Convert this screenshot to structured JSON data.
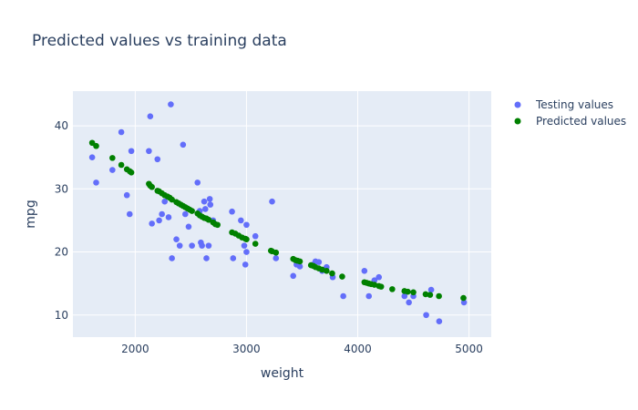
{
  "chart_data": {
    "type": "scatter",
    "title": "Predicted values vs training data",
    "xlabel": "weight",
    "ylabel": "mpg",
    "xlim": [
      1440,
      5200
    ],
    "ylim": [
      6.5,
      45.5
    ],
    "xticks": [
      2000,
      3000,
      4000,
      5000
    ],
    "yticks": [
      10,
      20,
      30,
      40
    ],
    "grid": true,
    "legend_position": "top-right",
    "colors": {
      "plot_bg": "#e5ecf6",
      "grid": "#ffffff",
      "text": "#2a3f5f"
    },
    "series": [
      {
        "name": "Testing values",
        "color": "#636efa",
        "points": [
          [
            1613,
            35
          ],
          [
            1649,
            31
          ],
          [
            1795,
            33
          ],
          [
            1875,
            39
          ],
          [
            1925,
            29
          ],
          [
            1950,
            26
          ],
          [
            1965,
            36
          ],
          [
            2123,
            36
          ],
          [
            2135,
            41.5
          ],
          [
            2150,
            24.5
          ],
          [
            2200,
            34.7
          ],
          [
            2215,
            25
          ],
          [
            2240,
            26
          ],
          [
            2265,
            28
          ],
          [
            2300,
            25.5
          ],
          [
            2320,
            43.4
          ],
          [
            2330,
            19
          ],
          [
            2370,
            22
          ],
          [
            2400,
            21
          ],
          [
            2430,
            37
          ],
          [
            2450,
            26
          ],
          [
            2480,
            24
          ],
          [
            2510,
            21
          ],
          [
            2560,
            31
          ],
          [
            2580,
            26.5
          ],
          [
            2590,
            21.5
          ],
          [
            2600,
            21
          ],
          [
            2620,
            28
          ],
          [
            2630,
            26.8
          ],
          [
            2640,
            19
          ],
          [
            2660,
            21
          ],
          [
            2670,
            28.4
          ],
          [
            2675,
            27.5
          ],
          [
            2700,
            25
          ],
          [
            2870,
            26.4
          ],
          [
            2880,
            19
          ],
          [
            2950,
            25
          ],
          [
            2980,
            21
          ],
          [
            2990,
            18
          ],
          [
            3000,
            20
          ],
          [
            3000,
            24.3
          ],
          [
            3080,
            22.5
          ],
          [
            3230,
            28
          ],
          [
            3265,
            19
          ],
          [
            3420,
            16.2
          ],
          [
            3450,
            18
          ],
          [
            3480,
            17.7
          ],
          [
            3600,
            18
          ],
          [
            3620,
            18.5
          ],
          [
            3650,
            18.4
          ],
          [
            3680,
            17
          ],
          [
            3720,
            17.6
          ],
          [
            3775,
            16
          ],
          [
            3870,
            13
          ],
          [
            4060,
            17
          ],
          [
            4100,
            13
          ],
          [
            4150,
            15.5
          ],
          [
            4190,
            16
          ],
          [
            4420,
            13
          ],
          [
            4460,
            12
          ],
          [
            4500,
            13
          ],
          [
            4615,
            10
          ],
          [
            4660,
            14
          ],
          [
            4732,
            9
          ],
          [
            4955,
            12
          ]
        ]
      },
      {
        "name": "Predicted values",
        "color": "#008000",
        "points": [
          [
            1613,
            37.3
          ],
          [
            1649,
            36.8
          ],
          [
            1795,
            34.9
          ],
          [
            1875,
            33.8
          ],
          [
            1925,
            33.1
          ],
          [
            1950,
            32.8
          ],
          [
            1965,
            32.6
          ],
          [
            2123,
            30.8
          ],
          [
            2135,
            30.5
          ],
          [
            2150,
            30.3
          ],
          [
            2200,
            29.7
          ],
          [
            2215,
            29.6
          ],
          [
            2240,
            29.3
          ],
          [
            2265,
            29
          ],
          [
            2290,
            28.8
          ],
          [
            2310,
            28.6
          ],
          [
            2330,
            28.3
          ],
          [
            2370,
            27.9
          ],
          [
            2390,
            27.7
          ],
          [
            2410,
            27.5
          ],
          [
            2430,
            27.3
          ],
          [
            2450,
            27.1
          ],
          [
            2470,
            26.9
          ],
          [
            2490,
            26.7
          ],
          [
            2510,
            26.5
          ],
          [
            2560,
            26.1
          ],
          [
            2580,
            25.8
          ],
          [
            2600,
            25.6
          ],
          [
            2620,
            25.4
          ],
          [
            2640,
            25.3
          ],
          [
            2660,
            25.1
          ],
          [
            2700,
            24.7
          ],
          [
            2720,
            24.4
          ],
          [
            2740,
            24.3
          ],
          [
            2870,
            23.1
          ],
          [
            2900,
            22.9
          ],
          [
            2930,
            22.6
          ],
          [
            2960,
            22.3
          ],
          [
            2990,
            22.1
          ],
          [
            3000,
            22
          ],
          [
            3080,
            21.3
          ],
          [
            3220,
            20.2
          ],
          [
            3230,
            20.1
          ],
          [
            3265,
            19.9
          ],
          [
            3420,
            18.9
          ],
          [
            3440,
            18.7
          ],
          [
            3460,
            18.6
          ],
          [
            3480,
            18.5
          ],
          [
            3580,
            17.9
          ],
          [
            3600,
            17.8
          ],
          [
            3620,
            17.6
          ],
          [
            3650,
            17.4
          ],
          [
            3680,
            17.2
          ],
          [
            3720,
            17
          ],
          [
            3770,
            16.6
          ],
          [
            3860,
            16.1
          ],
          [
            4060,
            15.2
          ],
          [
            4080,
            15.1
          ],
          [
            4100,
            15
          ],
          [
            4120,
            14.9
          ],
          [
            4150,
            14.8
          ],
          [
            4190,
            14.6
          ],
          [
            4210,
            14.5
          ],
          [
            4310,
            14.1
          ],
          [
            4420,
            13.8
          ],
          [
            4450,
            13.7
          ],
          [
            4500,
            13.6
          ],
          [
            4610,
            13.3
          ],
          [
            4650,
            13.2
          ],
          [
            4730,
            13
          ],
          [
            4950,
            12.7
          ]
        ]
      }
    ]
  }
}
